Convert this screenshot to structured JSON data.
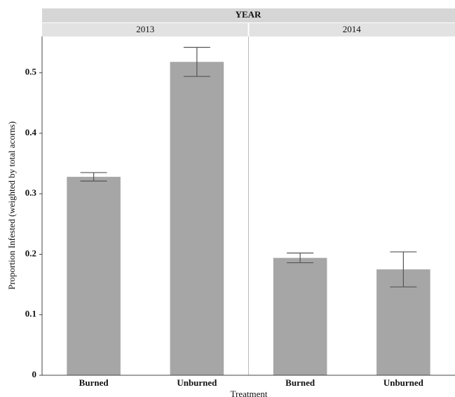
{
  "chart_data": {
    "type": "bar",
    "facet_title": "YEAR",
    "y_label": "Proportion Infested (weighted by total acorns)",
    "x_label": "Treatment",
    "color": "#a6a6a6",
    "ylim": [
      0,
      0.56
    ],
    "yticks": [
      0,
      0.1,
      0.2,
      0.3,
      0.4,
      0.5
    ],
    "panels": [
      {
        "title": "2013",
        "categories": [
          "Burned",
          "Unburned"
        ],
        "values": [
          0.328,
          0.518
        ],
        "errors": [
          0.007,
          0.024
        ]
      },
      {
        "title": "2014",
        "categories": [
          "Burned",
          "Unburned"
        ],
        "values": [
          0.194,
          0.175
        ],
        "errors": [
          0.008,
          0.029
        ]
      }
    ]
  }
}
